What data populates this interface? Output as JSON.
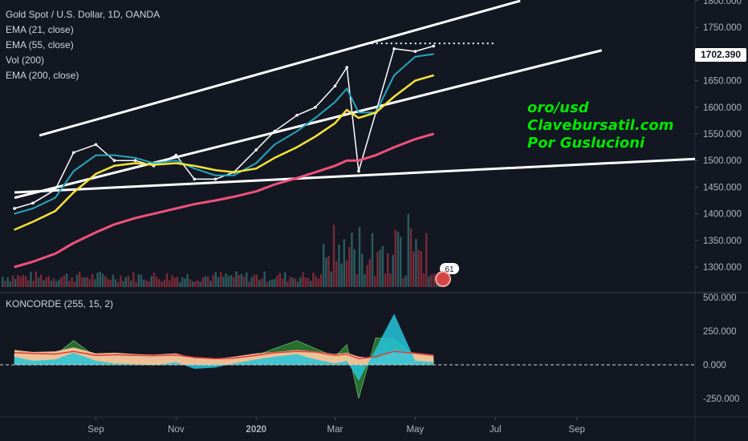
{
  "legend": {
    "title": "Gold Spot / U.S. Dollar, 1D, OANDA",
    "ema21": "EMA (21, close)",
    "ema55": "EMA (55, close)",
    "vol": "Vol (200)",
    "ema200": "EMA (200, close)"
  },
  "oscillator": {
    "title": "KONCORDE (255, 15, 2)"
  },
  "annotation": {
    "line1": "oro/usd",
    "line2": "Clavebursatil.com",
    "line3": "Por Guslucioni"
  },
  "current_price": "1702.390",
  "volume_badge": "61",
  "colors": {
    "background": "#131722",
    "candle": "#ffffff",
    "ema21": "#26a6bf",
    "ema55": "#f5e33a",
    "ema200": "#f0527a",
    "volume_up": "#2b5b5e",
    "volume_down": "#7a2a38",
    "trendline": "#ffffff",
    "koncorde_fill": "#f7c79d",
    "koncorde_line": "#e53935",
    "koncorde_blue": "#26c6da",
    "koncorde_green": "#2e7d32"
  },
  "chart_data": [
    {
      "type": "line",
      "title": "Gold Spot / U.S. Dollar, 1D, OANDA",
      "x_tick_labels": [
        "Sep",
        "Nov",
        "2020",
        "Mar",
        "May",
        "Jul",
        "Sep"
      ],
      "y_tick_labels": [
        "1800.000",
        "1750.000",
        "1700.000",
        "1650.000",
        "1600.000",
        "1550.000",
        "1500.000",
        "1450.000",
        "1400.000",
        "1350.000",
        "1300.000"
      ],
      "ylim": [
        1270,
        1805
      ],
      "y_scale": "linear",
      "grid": false,
      "x_dates": [
        "2019-07-01",
        "2019-07-15",
        "2019-08-01",
        "2019-08-15",
        "2019-09-01",
        "2019-09-15",
        "2019-10-01",
        "2019-10-15",
        "2019-11-01",
        "2019-11-15",
        "2019-12-01",
        "2019-12-15",
        "2020-01-01",
        "2020-01-15",
        "2020-02-01",
        "2020-02-15",
        "2020-03-01",
        "2020-03-10",
        "2020-03-19",
        "2020-04-01",
        "2020-04-15",
        "2020-05-01",
        "2020-05-15"
      ],
      "series": [
        {
          "name": "Gold Spot / U.S. Dollar, 1D, OANDA",
          "values": [
            1410,
            1420,
            1445,
            1515,
            1530,
            1500,
            1500,
            1490,
            1510,
            1465,
            1465,
            1478,
            1520,
            1555,
            1585,
            1600,
            1640,
            1675,
            1480,
            1590,
            1710,
            1705,
            1715
          ]
        },
        {
          "name": "EMA (21, close)",
          "values": [
            1400,
            1410,
            1430,
            1480,
            1510,
            1510,
            1505,
            1495,
            1500,
            1485,
            1472,
            1472,
            1495,
            1530,
            1555,
            1580,
            1610,
            1635,
            1590,
            1590,
            1660,
            1695,
            1700
          ]
        },
        {
          "name": "EMA (55, close)",
          "values": [
            1370,
            1385,
            1405,
            1440,
            1475,
            1490,
            1495,
            1492,
            1495,
            1490,
            1482,
            1478,
            1485,
            1505,
            1525,
            1545,
            1570,
            1595,
            1580,
            1590,
            1620,
            1650,
            1660
          ]
        },
        {
          "name": "EMA (200, close)",
          "values": [
            1300,
            1310,
            1325,
            1345,
            1365,
            1380,
            1392,
            1400,
            1410,
            1418,
            1425,
            1432,
            1442,
            1455,
            1467,
            1478,
            1490,
            1500,
            1500,
            1510,
            1525,
            1540,
            1550
          ]
        }
      ],
      "trendlines": [
        {
          "from": [
            "2019-07-20",
            1547
          ],
          "to": [
            "2020-07-20",
            1800
          ]
        },
        {
          "from": [
            "2019-07-01",
            1430
          ],
          "to": [
            "2020-09-20",
            1707
          ]
        },
        {
          "from": [
            "2019-07-01",
            1440
          ],
          "to": [
            "2020-11-30",
            1503
          ]
        },
        {
          "from": [
            "2020-03-25",
            1720
          ],
          "to": [
            "2020-06-30",
            1720
          ],
          "style": "dotted"
        }
      ]
    },
    {
      "type": "area",
      "title": "KONCORDE (255, 15, 2)",
      "y_tick_labels": [
        "500.000",
        "250.000",
        "0.000",
        "-250.000"
      ],
      "ylim": [
        -330,
        560
      ],
      "x_dates": [
        "2019-07-01",
        "2019-07-15",
        "2019-08-01",
        "2019-08-15",
        "2019-09-01",
        "2019-09-15",
        "2019-10-01",
        "2019-10-15",
        "2019-11-01",
        "2019-11-15",
        "2019-12-01",
        "2019-12-15",
        "2020-01-01",
        "2020-01-15",
        "2020-02-01",
        "2020-02-15",
        "2020-03-01",
        "2020-03-10",
        "2020-03-19",
        "2020-04-01",
        "2020-04-15",
        "2020-05-01",
        "2020-05-15"
      ],
      "series": [
        {
          "name": "koncorde_tan",
          "values": [
            110,
            95,
            100,
            130,
            85,
            90,
            80,
            75,
            85,
            50,
            45,
            60,
            85,
            95,
            110,
            100,
            80,
            90,
            60,
            50,
            110,
            90,
            75
          ]
        },
        {
          "name": "koncorde_red",
          "values": [
            90,
            85,
            80,
            100,
            70,
            75,
            70,
            68,
            72,
            55,
            45,
            50,
            70,
            90,
            100,
            95,
            70,
            80,
            45,
            60,
            100,
            85,
            70
          ]
        },
        {
          "name": "koncorde_blue",
          "values": [
            60,
            30,
            40,
            90,
            30,
            10,
            5,
            -5,
            20,
            -30,
            -20,
            10,
            40,
            60,
            80,
            40,
            10,
            30,
            -120,
            120,
            380,
            30,
            20
          ]
        },
        {
          "name": "koncorde_green",
          "values": [
            80,
            60,
            70,
            180,
            60,
            40,
            30,
            20,
            40,
            0,
            -10,
            30,
            70,
            120,
            180,
            120,
            60,
            150,
            -250,
            200,
            190,
            60,
            40
          ]
        }
      ]
    }
  ]
}
